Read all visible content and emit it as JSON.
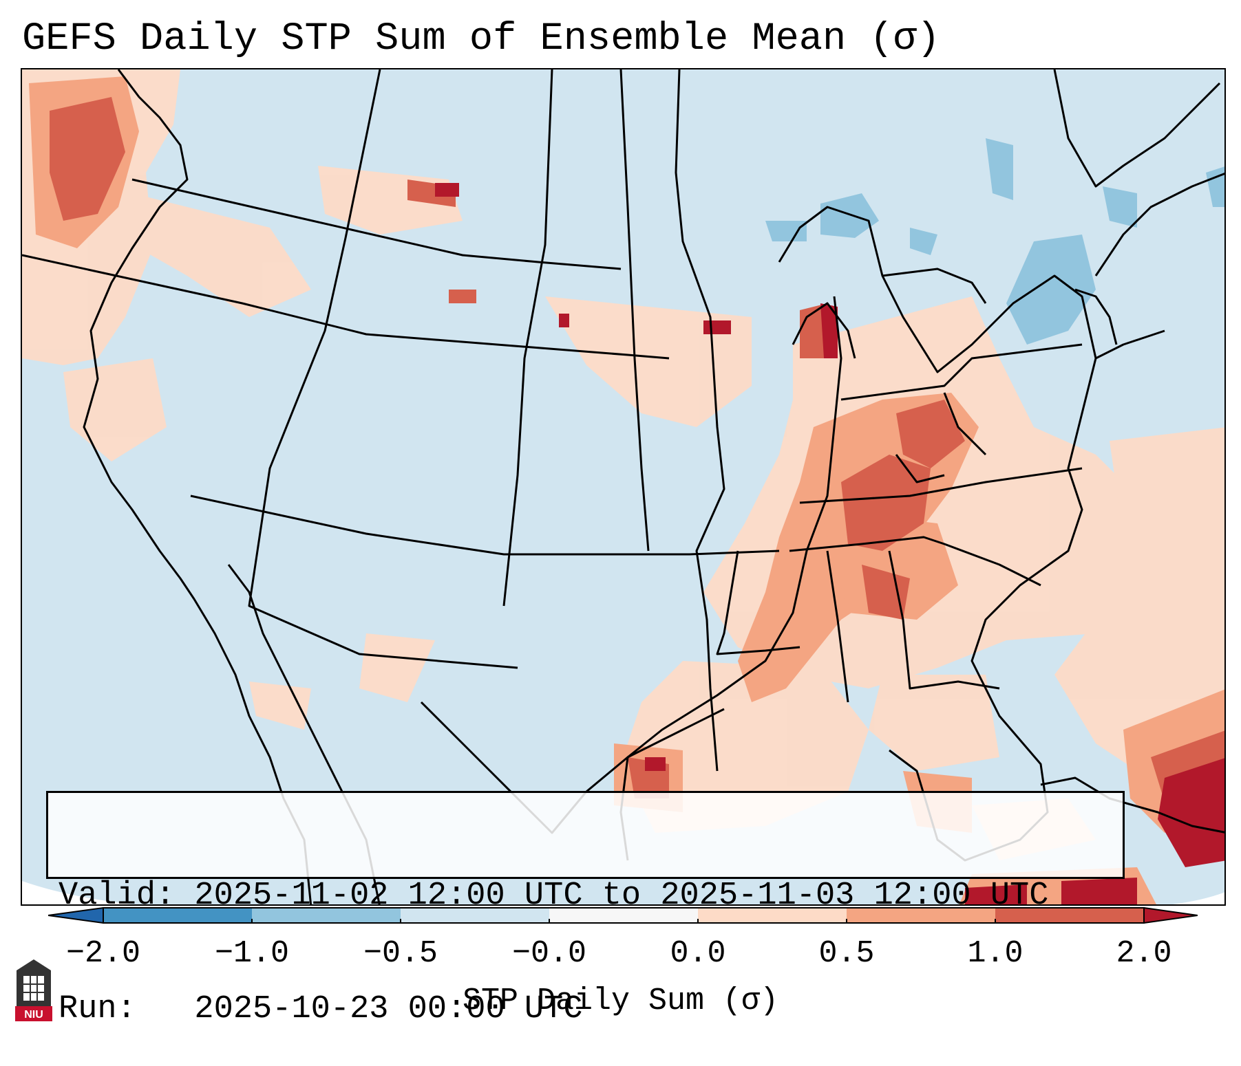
{
  "title": "GEFS Daily STP Sum of Ensemble Mean (σ)",
  "info": {
    "valid_line": "Valid: 2025-11-02 12:00 UTC to 2025-11-03 12:00 UTC",
    "run_line": "Run:   2025-10-23 00:00 UTC"
  },
  "colorbar": {
    "label": "STP Daily Sum (σ)",
    "ticks": [
      "−2.0",
      "−1.0",
      "−0.5",
      "−0.0",
      "0.0",
      "0.5",
      "1.0",
      "2.0"
    ],
    "colors": {
      "below_min": "#2166ac",
      "neg_2_to_1": "#4393c3",
      "neg_1_to_05": "#92c5de",
      "neg_05_to_0": "#d1e5f0",
      "zero_band": "#f7f7f7",
      "pos_0_to_05": "#fddbc7",
      "pos_05_to_1": "#f4a582",
      "pos_1_to_2": "#d6604d",
      "above_max": "#b2182b"
    }
  },
  "map": {
    "background_color": "#d1e5f0",
    "boundary_color": "#000000"
  },
  "logo": {
    "text": "NIU"
  }
}
